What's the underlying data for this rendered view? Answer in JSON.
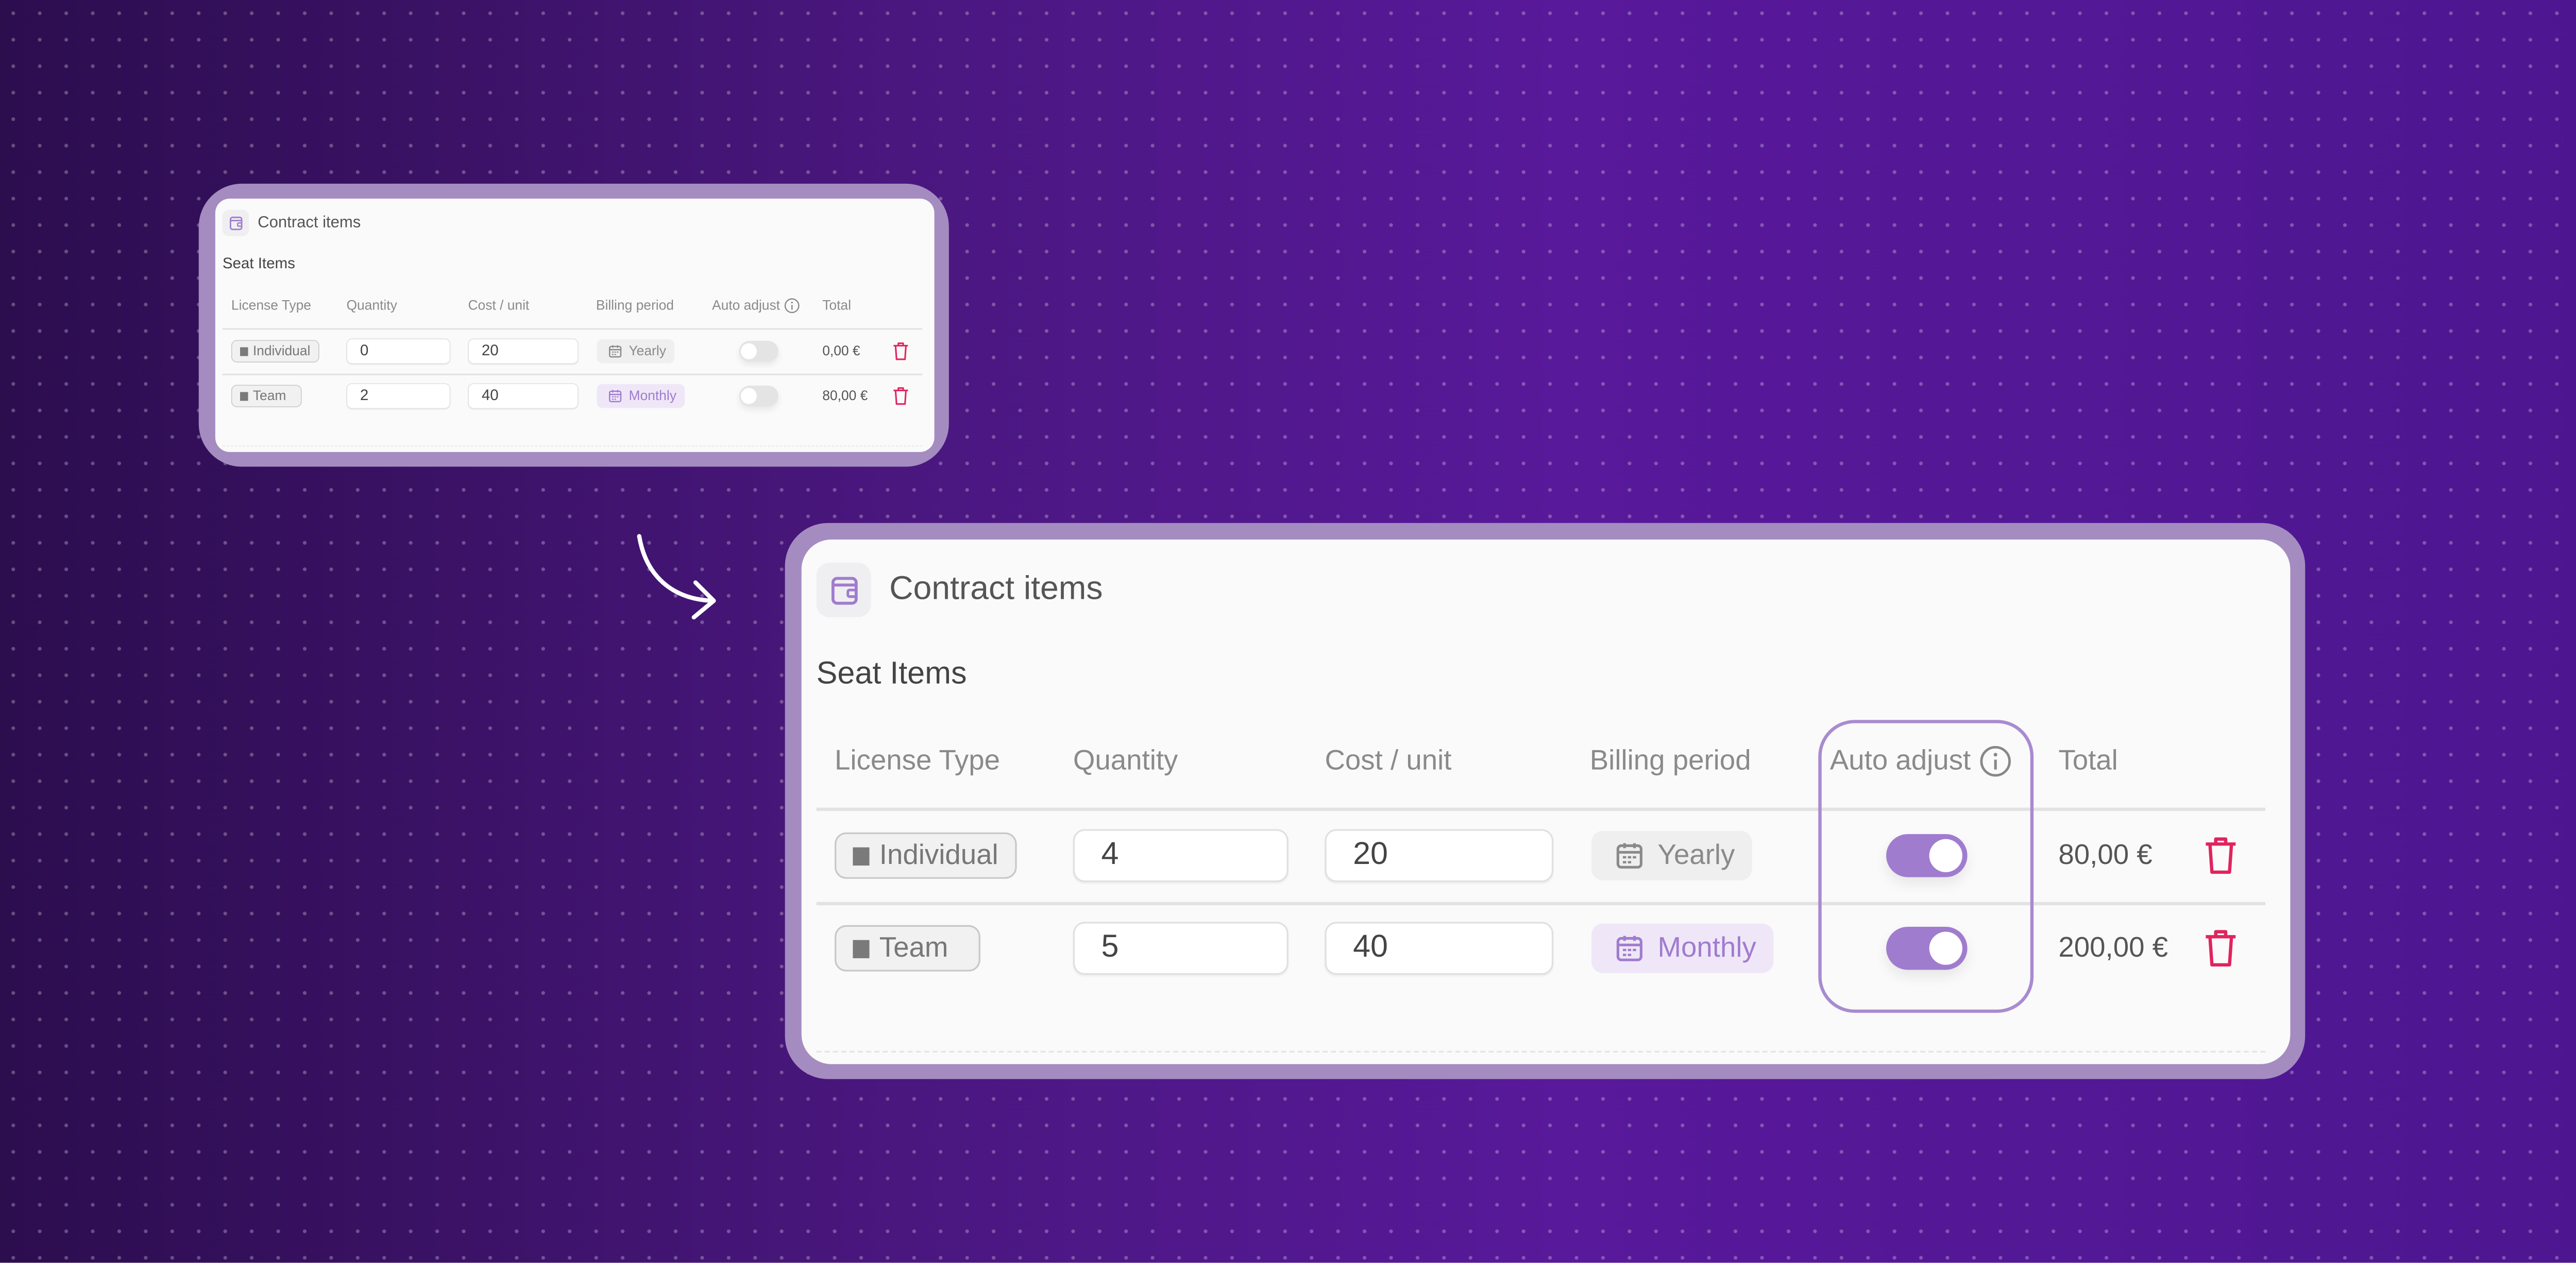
{
  "colors": {
    "accent": "#a07ccf",
    "danger": "#e0245e",
    "background": "#4a177f"
  },
  "small": {
    "title": "Contract items",
    "section": "Seat Items",
    "headers": {
      "license": "License Type",
      "quantity": "Quantity",
      "cost": "Cost / unit",
      "billing": "Billing period",
      "auto": "Auto adjust",
      "total": "Total"
    },
    "rows": [
      {
        "license": "Individual",
        "quantity": "0",
        "cost": "20",
        "billing": "Yearly",
        "auto_adjust": false,
        "total": "0,00 €"
      },
      {
        "license": "Team",
        "quantity": "2",
        "cost": "40",
        "billing": "Monthly",
        "auto_adjust": false,
        "total": "80,00 €"
      }
    ]
  },
  "large": {
    "title": "Contract items",
    "section": "Seat Items",
    "headers": {
      "license": "License Type",
      "quantity": "Quantity",
      "cost": "Cost / unit",
      "billing": "Billing period",
      "auto": "Auto adjust",
      "total": "Total"
    },
    "rows": [
      {
        "license": "Individual",
        "quantity": "4",
        "cost": "20",
        "billing": "Yearly",
        "auto_adjust": true,
        "total": "80,00 €"
      },
      {
        "license": "Team",
        "quantity": "5",
        "cost": "40",
        "billing": "Monthly",
        "auto_adjust": true,
        "total": "200,00 €"
      }
    ]
  }
}
